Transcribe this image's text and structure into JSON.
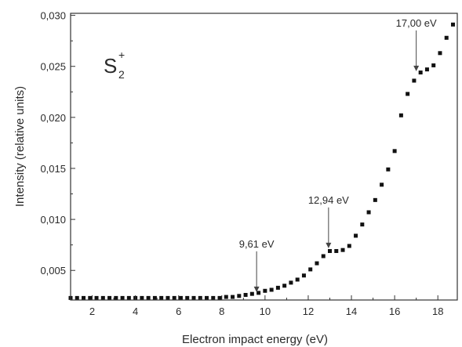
{
  "chart_data": {
    "type": "scatter",
    "title": "",
    "xlabel": "Electron impact energy (eV)",
    "ylabel": "Intensity (relative units)",
    "xlim": [
      1,
      18.9
    ],
    "ylim": [
      0.0021,
      0.0302
    ],
    "x_ticks": [
      2,
      4,
      6,
      8,
      10,
      12,
      14,
      16,
      18
    ],
    "y_ticks": [
      0.005,
      0.01,
      0.015,
      0.02,
      0.025,
      0.03
    ],
    "x_tick_labels": [
      "2",
      "4",
      "6",
      "8",
      "10",
      "12",
      "14",
      "16",
      "18"
    ],
    "y_tick_labels": [
      "0,005",
      "0,010",
      "0,015",
      "0,020",
      "0,025",
      "0,030"
    ],
    "grid": false,
    "legend": "none",
    "marker_color": "#111111",
    "species_label": {
      "base": "S",
      "subscript": "2",
      "superscript": "+"
    },
    "annotations": [
      {
        "text": "9,61 eV",
        "x": 9.61,
        "y": 0.00265
      },
      {
        "text": "12,94 eV",
        "x": 12.94,
        "y": 0.00695
      },
      {
        "text": "17,00 eV",
        "x": 17.0,
        "y": 0.0243
      }
    ],
    "series": [
      {
        "x": [
          1.0,
          1.3,
          1.6,
          1.9,
          2.2,
          2.5,
          2.8,
          3.1,
          3.4,
          3.7,
          4.0,
          4.3,
          4.6,
          4.9,
          5.2,
          5.5,
          5.8,
          6.1,
          6.4,
          6.7,
          7.0,
          7.3,
          7.6,
          7.9,
          8.2,
          8.5,
          8.8,
          9.1,
          9.4,
          9.7,
          10.0,
          10.3,
          10.6,
          10.9,
          11.2,
          11.5,
          11.8,
          12.1,
          12.4,
          12.7,
          13.0,
          13.3,
          13.6,
          13.9,
          14.2,
          14.5,
          14.8,
          15.1,
          15.4,
          15.7,
          16.0,
          16.3,
          16.6,
          16.9,
          17.2,
          17.5,
          17.8,
          18.1,
          18.4,
          18.7
        ],
        "y": [
          0.0023,
          0.0023,
          0.0023,
          0.0023,
          0.0023,
          0.0023,
          0.0023,
          0.0023,
          0.0023,
          0.0023,
          0.0023,
          0.0023,
          0.0023,
          0.0023,
          0.0023,
          0.0023,
          0.0023,
          0.0023,
          0.0023,
          0.0023,
          0.0023,
          0.0023,
          0.0023,
          0.0023,
          0.0024,
          0.0024,
          0.0025,
          0.0026,
          0.0027,
          0.0028,
          0.003,
          0.0031,
          0.0033,
          0.0035,
          0.0038,
          0.0041,
          0.0045,
          0.0051,
          0.0057,
          0.0064,
          0.0069,
          0.0069,
          0.007,
          0.0074,
          0.0084,
          0.0095,
          0.0107,
          0.0119,
          0.0134,
          0.0149,
          0.0167,
          0.0202,
          0.0223,
          0.0236,
          0.0244,
          0.0247,
          0.0251,
          0.0263,
          0.0278,
          0.0291
        ]
      }
    ]
  }
}
